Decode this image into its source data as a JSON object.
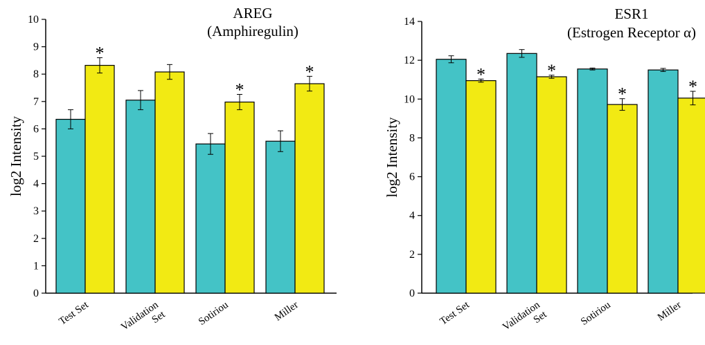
{
  "chart_data": [
    {
      "type": "bar",
      "title": "AREG",
      "subtitle": "(Amphiregulin)",
      "xlabel": "",
      "ylabel": "log2 Intensity",
      "ylim": [
        0,
        10
      ],
      "yticks": [
        "0",
        "1",
        "2",
        "3",
        "4",
        "5",
        "6",
        "7",
        "8",
        "9",
        "10"
      ],
      "categories": [
        [
          "Test Set"
        ],
        [
          "Validation",
          "Set"
        ],
        [
          "Sotiriou"
        ],
        [
          "Miller"
        ]
      ],
      "series": [
        {
          "color": "#44c3c6",
          "values": [
            6.35,
            7.05,
            5.45,
            5.55
          ],
          "errors": [
            0.35,
            0.35,
            0.38,
            0.38
          ]
        },
        {
          "color": "#f2ea13",
          "values": [
            8.32,
            8.08,
            6.98,
            7.65
          ],
          "errors": [
            0.28,
            0.27,
            0.28,
            0.27
          ]
        }
      ],
      "significance": [
        true,
        false,
        true,
        true
      ],
      "annotation": "*",
      "grid": false
    },
    {
      "type": "bar",
      "title": "ESR1",
      "subtitle": "(Estrogen Receptor α)",
      "xlabel": "",
      "ylabel": "log2 Intensity",
      "ylim": [
        0,
        14
      ],
      "yticks": [
        "0",
        "2",
        "4",
        "6",
        "8",
        "10",
        "12",
        "14"
      ],
      "categories": [
        [
          "Test Set"
        ],
        [
          "Validation",
          "Set"
        ],
        [
          "Sotiriou"
        ],
        [
          "Miller"
        ]
      ],
      "series": [
        {
          "color": "#44c3c6",
          "values": [
            12.05,
            12.35,
            11.55,
            11.5
          ],
          "errors": [
            0.18,
            0.2,
            0.05,
            0.08
          ]
        },
        {
          "color": "#f2ea13",
          "values": [
            10.95,
            11.15,
            9.72,
            10.05
          ],
          "errors": [
            0.08,
            0.08,
            0.3,
            0.35
          ]
        }
      ],
      "significance": [
        true,
        true,
        true,
        true
      ],
      "annotation": "*",
      "grid": false
    }
  ]
}
